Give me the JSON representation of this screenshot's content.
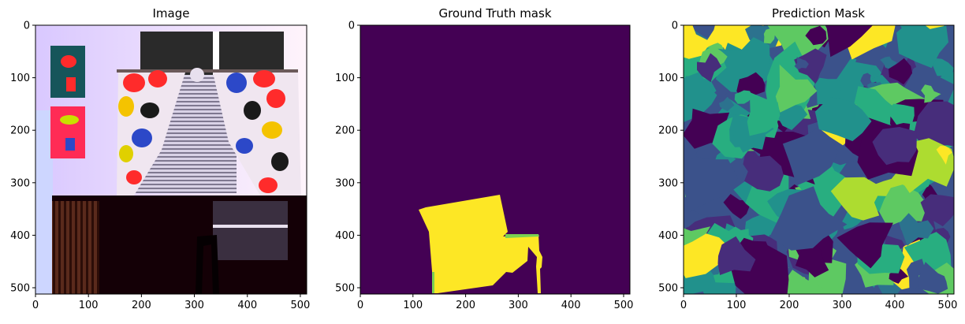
{
  "figure": {
    "panels": [
      {
        "title": "Image",
        "x_ticks": [
          "0",
          "100",
          "200",
          "300",
          "400",
          "500"
        ],
        "y_ticks": [
          "0",
          "100",
          "200",
          "300",
          "400",
          "500"
        ]
      },
      {
        "title": "Ground Truth mask",
        "x_ticks": [
          "0",
          "100",
          "200",
          "300",
          "400",
          "500"
        ],
        "y_ticks": [
          "0",
          "100",
          "200",
          "300",
          "400",
          "500"
        ]
      },
      {
        "title": "Prediction Mask",
        "x_ticks": [
          "0",
          "100",
          "200",
          "300",
          "400",
          "500"
        ],
        "y_ticks": [
          "0",
          "100",
          "200",
          "300",
          "400",
          "500"
        ]
      }
    ],
    "axis_range": [
      0,
      512
    ],
    "colors": {
      "mask_background": "#440154",
      "mask_foreground": "#fde725",
      "mask_edge": "#7ad151",
      "palette": [
        "#440154",
        "#472d7b",
        "#3b528b",
        "#2c728e",
        "#21918c",
        "#28ae80",
        "#5ec962",
        "#addc30",
        "#fde725"
      ]
    }
  }
}
